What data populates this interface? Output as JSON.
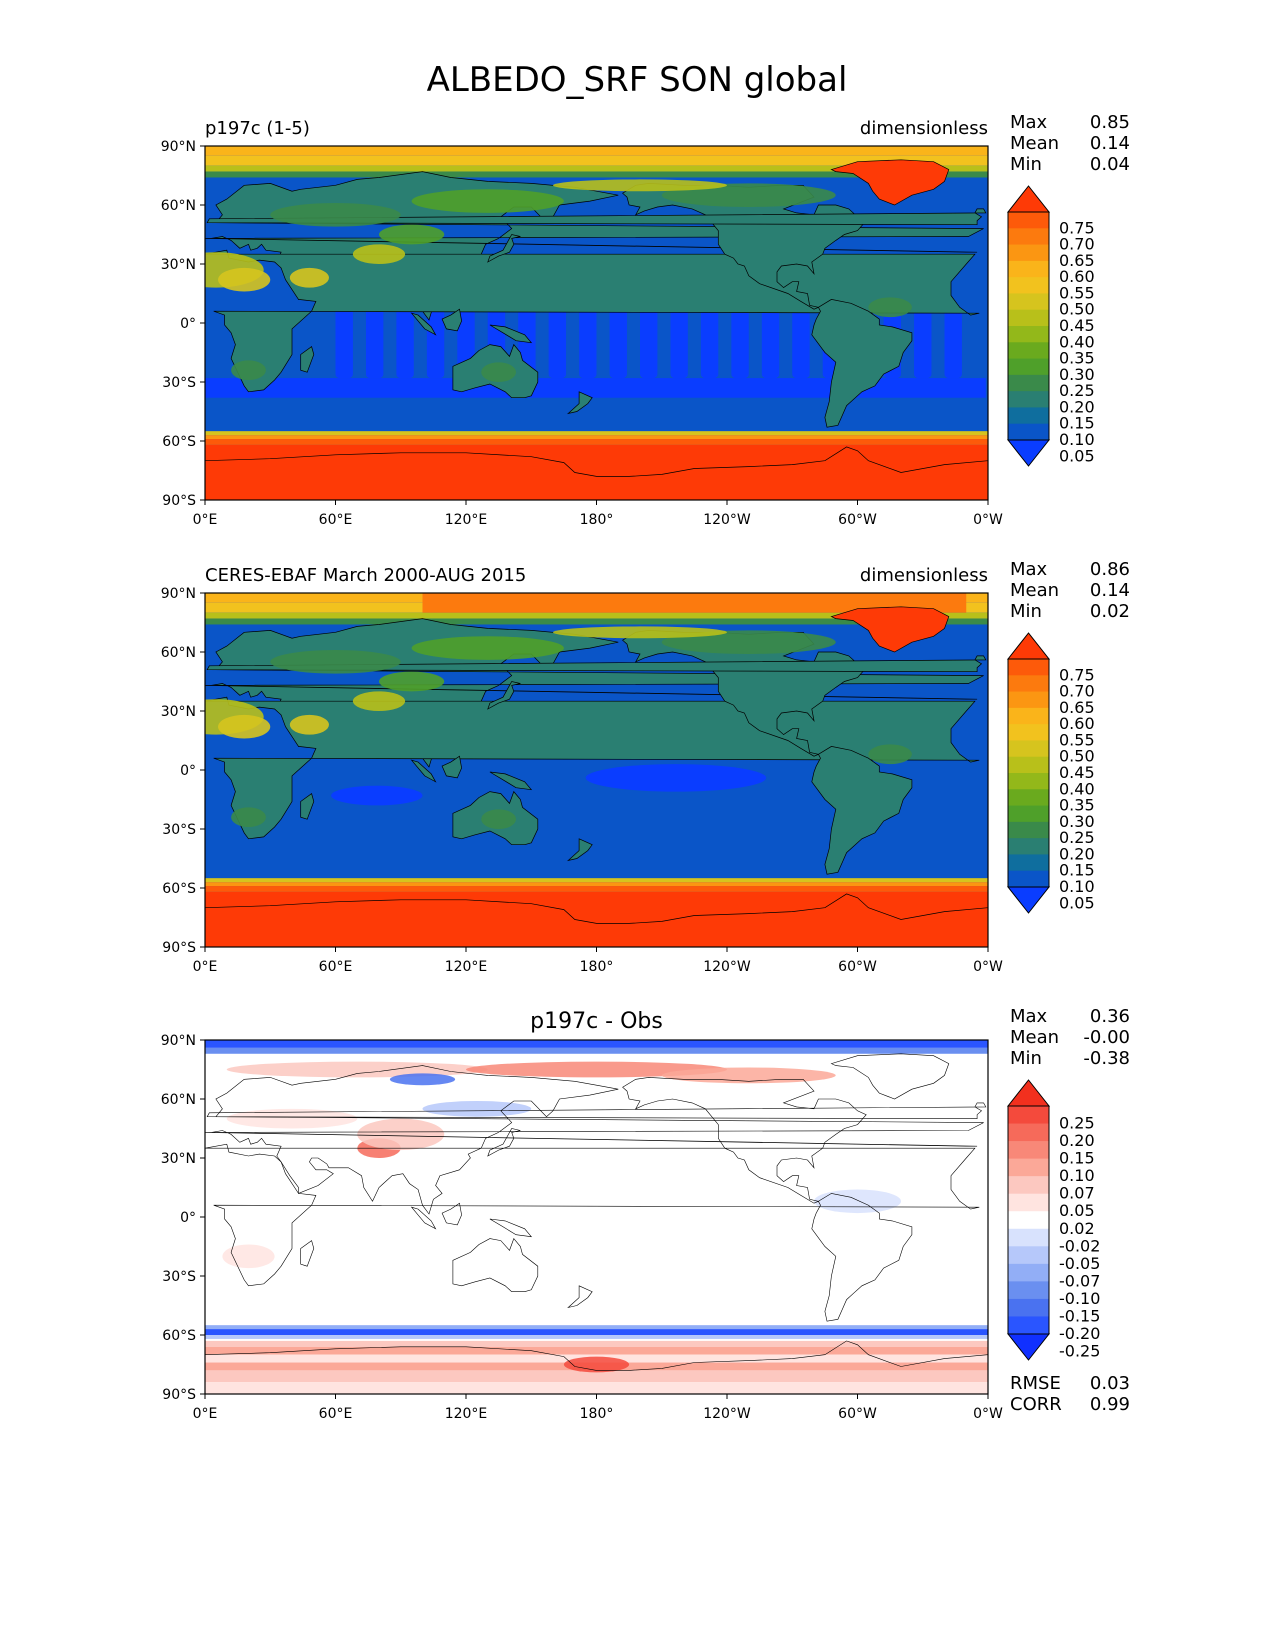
{
  "title": "ALBEDO_SRF SON global",
  "palette": {
    "albedo": [
      "#0a3dff",
      "#0a55c8",
      "#0f6e9e",
      "#2a7f72",
      "#3a8a4a",
      "#4fa02a",
      "#6aaa1e",
      "#93b81a",
      "#b8c01a",
      "#d6c41e",
      "#f2c21e",
      "#fab41a",
      "#fb9612",
      "#fc7a0e",
      "#fd5a0a",
      "#fe3a06"
    ],
    "diff": [
      "#1030ff",
      "#2a55ff",
      "#4a72f0",
      "#6a8ff0",
      "#92aef6",
      "#b6c8fa",
      "#d8e2fd",
      "#ffffff",
      "#ffe4e0",
      "#fcc8c0",
      "#fba898",
      "#f88878",
      "#f66a5a",
      "#f44a3c",
      "#f2301e"
    ],
    "ocean": "#0a55c8",
    "ice": "#fe3a06",
    "land": "#2a7f72"
  },
  "panels": [
    {
      "left_title": "p197c (1-5)",
      "center_title": "",
      "units": "dimensionless",
      "stats": [
        {
          "label": "Max",
          "value": "0.85"
        },
        {
          "label": "Mean",
          "value": "0.14"
        },
        {
          "label": "Min",
          "value": "0.04"
        }
      ],
      "kind": "albedo",
      "colorbar": [
        "0.75",
        "0.70",
        "0.65",
        "0.60",
        "0.55",
        "0.50",
        "0.45",
        "0.40",
        "0.35",
        "0.30",
        "0.25",
        "0.20",
        "0.15",
        "0.10",
        "0.05"
      ]
    },
    {
      "left_title": "CERES-EBAF March 2000-AUG 2015",
      "center_title": "",
      "units": "dimensionless",
      "stats": [
        {
          "label": "Max",
          "value": "0.86"
        },
        {
          "label": "Mean",
          "value": "0.14"
        },
        {
          "label": "Min",
          "value": "0.02"
        }
      ],
      "kind": "albedo",
      "colorbar": [
        "0.75",
        "0.70",
        "0.65",
        "0.60",
        "0.55",
        "0.50",
        "0.45",
        "0.40",
        "0.35",
        "0.30",
        "0.25",
        "0.20",
        "0.15",
        "0.10",
        "0.05"
      ]
    },
    {
      "left_title": "",
      "center_title": "p197c - Obs",
      "units": "",
      "stats": [
        {
          "label": "Max",
          "value": "0.36"
        },
        {
          "label": "Mean",
          "value": "-0.00"
        },
        {
          "label": "Min",
          "value": "-0.38"
        }
      ],
      "kind": "diff",
      "colorbar": [
        "0.25",
        "0.20",
        "0.15",
        "0.10",
        "0.07",
        "0.05",
        "0.02",
        "-0.02",
        "-0.05",
        "-0.07",
        "-0.10",
        "-0.15",
        "-0.20",
        "-0.25"
      ],
      "footer_stats": [
        {
          "label": "RMSE",
          "value": "0.03"
        },
        {
          "label": "CORR",
          "value": "0.99"
        }
      ]
    }
  ],
  "chart_data": {
    "type": "heatmap",
    "title": "ALBEDO_SRF SON global",
    "variable": "ALBEDO_SRF",
    "season": "SON",
    "units": "dimensionless",
    "x_ticks": [
      "0°E",
      "60°E",
      "120°E",
      "180°",
      "120°W",
      "60°W",
      "0°W"
    ],
    "y_ticks": [
      "90°N",
      "60°N",
      "30°N",
      "0°",
      "30°S",
      "60°S",
      "90°S"
    ],
    "xlim": [
      0,
      360
    ],
    "ylim": [
      -90,
      90
    ],
    "panels": [
      {
        "name": "p197c (1-5)",
        "max": 0.85,
        "mean": 0.14,
        "min": 0.04,
        "levels": [
          0.05,
          0.1,
          0.15,
          0.2,
          0.25,
          0.3,
          0.35,
          0.4,
          0.45,
          0.5,
          0.55,
          0.6,
          0.65,
          0.7,
          0.75
        ]
      },
      {
        "name": "CERES-EBAF March 2000-AUG 2015",
        "max": 0.86,
        "mean": 0.14,
        "min": 0.02,
        "levels": [
          0.05,
          0.1,
          0.15,
          0.2,
          0.25,
          0.3,
          0.35,
          0.4,
          0.45,
          0.5,
          0.55,
          0.6,
          0.65,
          0.7,
          0.75
        ]
      },
      {
        "name": "p197c - Obs",
        "max": 0.36,
        "mean": -0.0,
        "min": -0.38,
        "rmse": 0.03,
        "corr": 0.99,
        "levels": [
          -0.25,
          -0.2,
          -0.15,
          -0.1,
          -0.07,
          -0.05,
          -0.02,
          0.02,
          0.05,
          0.07,
          0.1,
          0.15,
          0.2,
          0.25
        ]
      }
    ]
  }
}
